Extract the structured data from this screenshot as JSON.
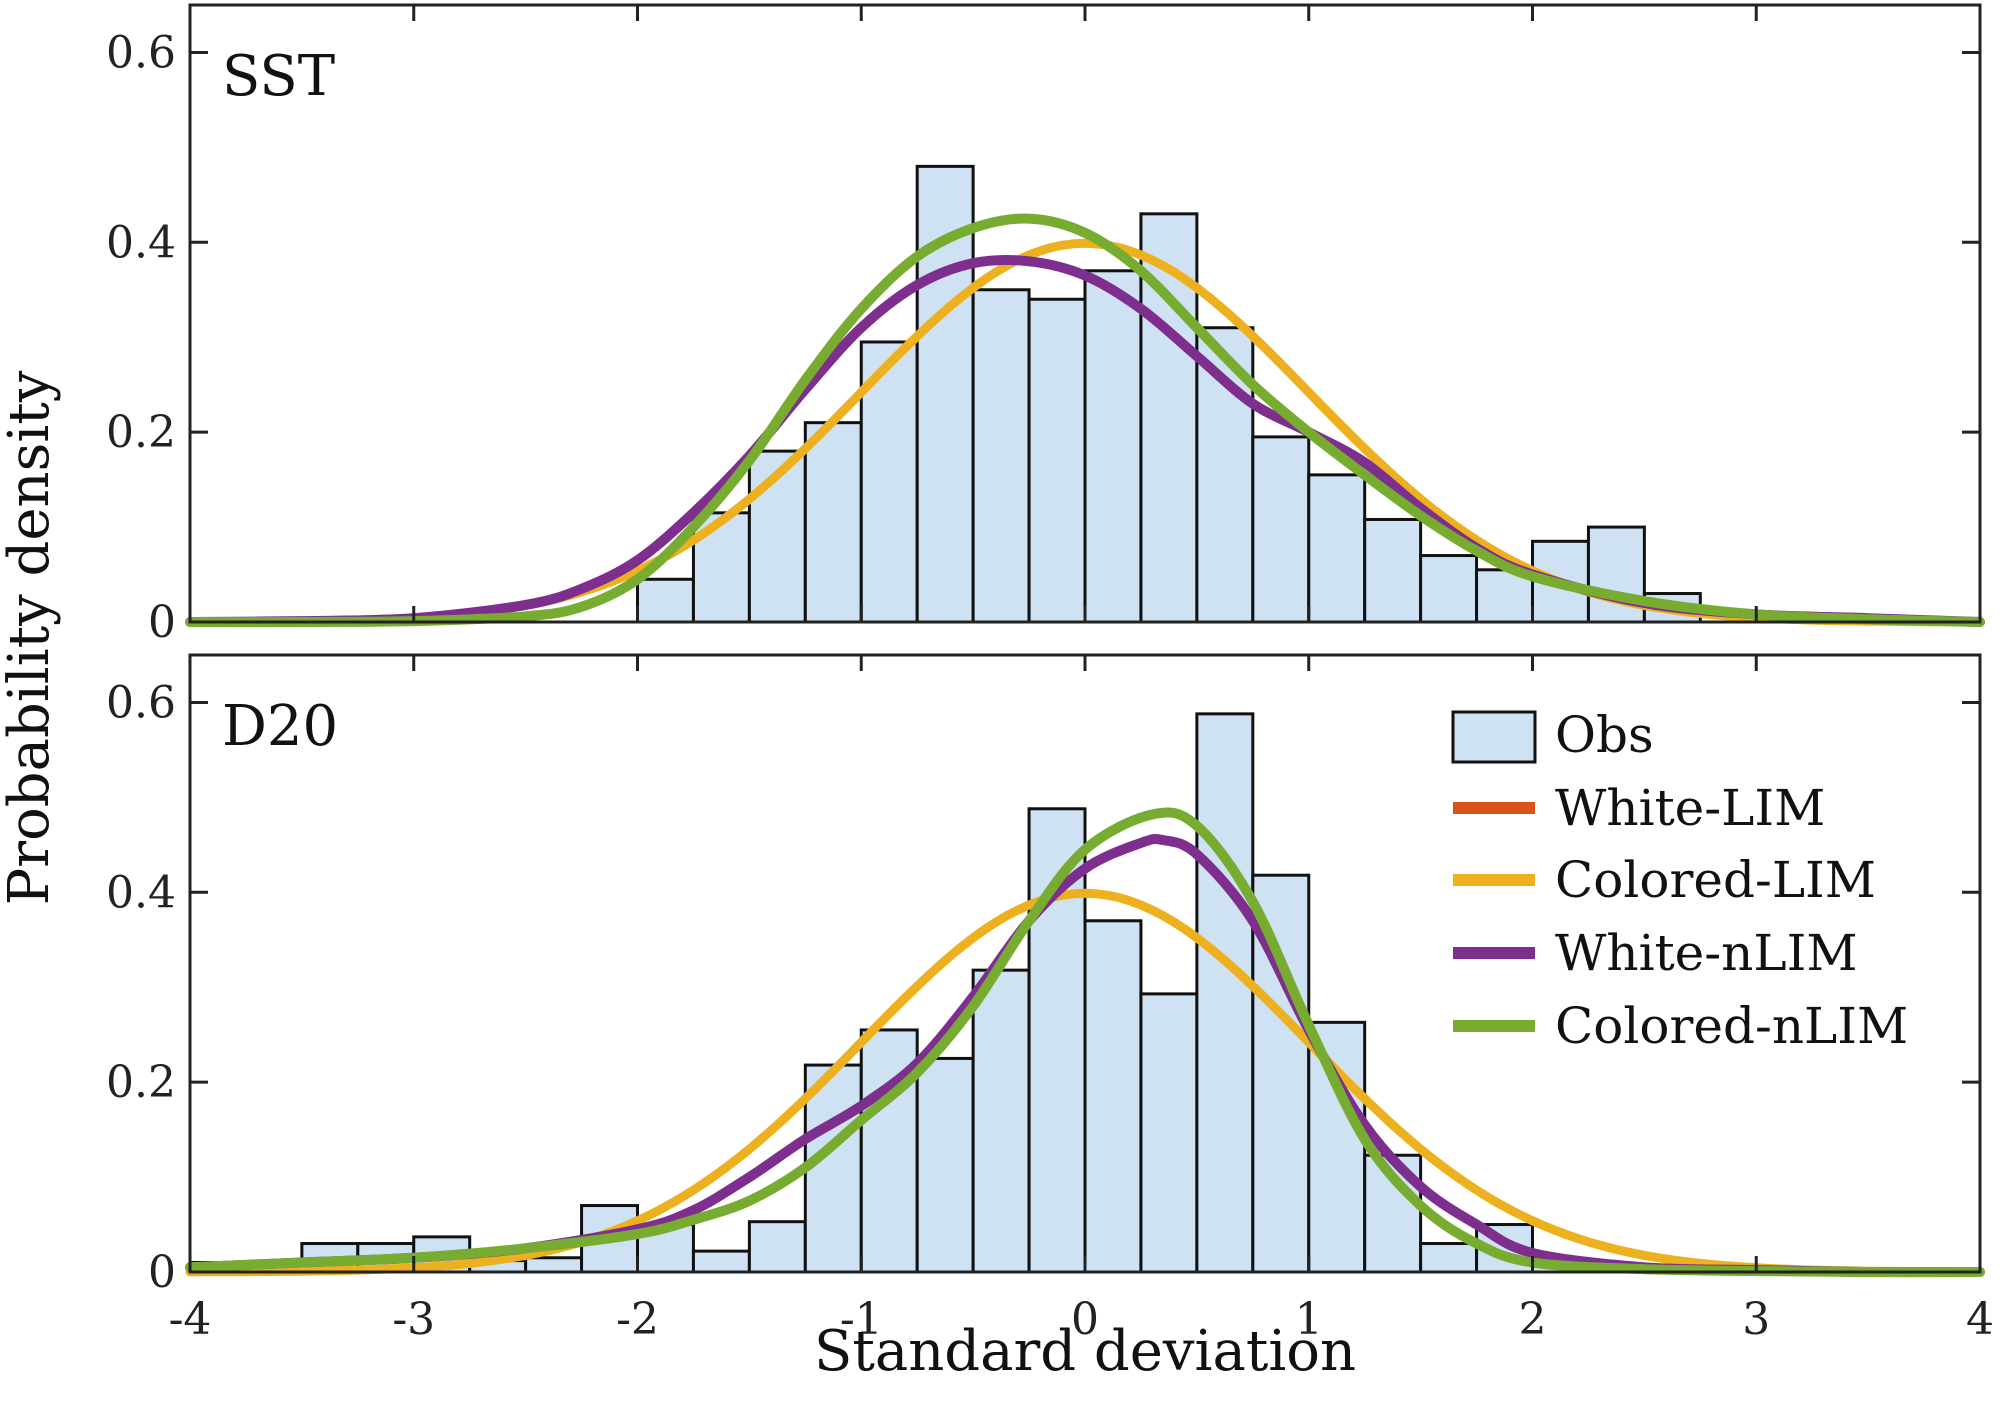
{
  "chart_data": {
    "type": "bar",
    "xlabel": "Standard deviation",
    "ylabel": "Probability density",
    "xlim": [
      -4,
      4
    ],
    "xticks": [
      -4,
      -3,
      -2,
      -1,
      0,
      1,
      2,
      3,
      4
    ],
    "xtick_labels": [
      "-4",
      "-3",
      "-2",
      "-1",
      "0",
      "1",
      "2",
      "3",
      "4"
    ],
    "bin_width": 0.25,
    "colors": {
      "obs": "#cfe2f3",
      "White-LIM": "#d95319",
      "Colored-LIM": "#edb120",
      "White-nLIM": "#7e2f8e",
      "Colored-nLIM": "#77ac30"
    },
    "legend": {
      "placement": "bottom-panel top-right",
      "entries": [
        "Obs",
        "White-LIM",
        "Colored-LIM",
        "White-nLIM",
        "Colored-nLIM"
      ]
    },
    "panels": [
      {
        "name": "sst",
        "label": "SST",
        "ylim": [
          0,
          0.65
        ],
        "yticks": [
          0,
          0.2,
          0.4,
          0.6
        ],
        "ytick_labels": [
          "0",
          "0.2",
          "0.4",
          "0.6"
        ],
        "bins": [
          {
            "left": -2.0,
            "value": 0.045
          },
          {
            "left": -1.75,
            "value": 0.115
          },
          {
            "left": -1.5,
            "value": 0.18
          },
          {
            "left": -1.25,
            "value": 0.21
          },
          {
            "left": -1.0,
            "value": 0.295
          },
          {
            "left": -0.75,
            "value": 0.48
          },
          {
            "left": -0.5,
            "value": 0.35
          },
          {
            "left": -0.25,
            "value": 0.34
          },
          {
            "left": 0.0,
            "value": 0.37
          },
          {
            "left": 0.25,
            "value": 0.43
          },
          {
            "left": 0.5,
            "value": 0.31
          },
          {
            "left": 0.75,
            "value": 0.195
          },
          {
            "left": 1.0,
            "value": 0.155
          },
          {
            "left": 1.25,
            "value": 0.108
          },
          {
            "left": 1.5,
            "value": 0.07
          },
          {
            "left": 1.75,
            "value": 0.055
          },
          {
            "left": 2.0,
            "value": 0.085
          },
          {
            "left": 2.25,
            "value": 0.1
          },
          {
            "left": 2.5,
            "value": 0.03
          }
        ],
        "series": [
          {
            "name": "White-LIM",
            "kind": "gaussian",
            "mu": 0.0,
            "sigma": 1.0,
            "scale": 1.0
          },
          {
            "name": "Colored-LIM",
            "kind": "gaussian",
            "mu": 0.0,
            "sigma": 1.0,
            "scale": 1.0
          },
          {
            "name": "White-nLIM",
            "kind": "points",
            "x": [
              -4,
              -3.5,
              -3,
              -2.5,
              -2.25,
              -2,
              -1.75,
              -1.5,
              -1.25,
              -1,
              -0.75,
              -0.5,
              -0.25,
              0,
              0.25,
              0.5,
              0.75,
              1,
              1.25,
              1.5,
              1.75,
              2,
              2.5,
              3,
              3.5,
              4
            ],
            "y": [
              0.0,
              0.001,
              0.004,
              0.018,
              0.035,
              0.065,
              0.115,
              0.175,
              0.245,
              0.31,
              0.355,
              0.378,
              0.38,
              0.365,
              0.33,
              0.28,
              0.23,
              0.2,
              0.168,
              0.12,
              0.078,
              0.05,
              0.02,
              0.008,
              0.004,
              0.0
            ]
          },
          {
            "name": "Colored-nLIM",
            "kind": "points",
            "x": [
              -4,
              -3.5,
              -3,
              -2.5,
              -2.25,
              -2,
              -1.75,
              -1.5,
              -1.25,
              -1,
              -0.75,
              -0.5,
              -0.25,
              0,
              0.25,
              0.5,
              0.75,
              1,
              1.25,
              1.5,
              1.75,
              2,
              2.5,
              3,
              3.5,
              4
            ],
            "y": [
              0.0,
              0.0,
              0.001,
              0.006,
              0.016,
              0.045,
              0.1,
              0.17,
              0.255,
              0.33,
              0.385,
              0.415,
              0.425,
              0.41,
              0.37,
              0.31,
              0.25,
              0.2,
              0.155,
              0.112,
              0.075,
              0.048,
              0.022,
              0.008,
              0.003,
              0.0
            ]
          }
        ]
      },
      {
        "name": "d20",
        "label": "D20",
        "ylim": [
          0,
          0.65
        ],
        "yticks": [
          0,
          0.2,
          0.4,
          0.6
        ],
        "ytick_labels": [
          "0",
          "0.2",
          "0.4",
          "0.6"
        ],
        "bins": [
          {
            "left": -4.0,
            "value": 0.01
          },
          {
            "left": -3.75,
            "value": 0.01
          },
          {
            "left": -3.5,
            "value": 0.03
          },
          {
            "left": -3.25,
            "value": 0.03
          },
          {
            "left": -3.0,
            "value": 0.037
          },
          {
            "left": -2.75,
            "value": 0.012
          },
          {
            "left": -2.5,
            "value": 0.015
          },
          {
            "left": -2.25,
            "value": 0.07
          },
          {
            "left": -2.0,
            "value": 0.05
          },
          {
            "left": -1.75,
            "value": 0.022
          },
          {
            "left": -1.5,
            "value": 0.053
          },
          {
            "left": -1.25,
            "value": 0.218
          },
          {
            "left": -1.0,
            "value": 0.255
          },
          {
            "left": -0.75,
            "value": 0.225
          },
          {
            "left": -0.5,
            "value": 0.318
          },
          {
            "left": -0.25,
            "value": 0.488
          },
          {
            "left": 0.0,
            "value": 0.37
          },
          {
            "left": 0.25,
            "value": 0.293
          },
          {
            "left": 0.5,
            "value": 0.588
          },
          {
            "left": 0.75,
            "value": 0.418
          },
          {
            "left": 1.0,
            "value": 0.263
          },
          {
            "left": 1.25,
            "value": 0.123
          },
          {
            "left": 1.5,
            "value": 0.03
          },
          {
            "left": 1.75,
            "value": 0.05
          },
          {
            "left": 2.0,
            "value": 0.01
          }
        ],
        "series": [
          {
            "name": "White-LIM",
            "kind": "gaussian",
            "mu": 0.0,
            "sigma": 1.0,
            "scale": 1.0
          },
          {
            "name": "Colored-LIM",
            "kind": "gaussian",
            "mu": 0.0,
            "sigma": 1.0,
            "scale": 1.0
          },
          {
            "name": "White-nLIM",
            "kind": "points",
            "x": [
              -4,
              -3.5,
              -3,
              -2.5,
              -2,
              -1.75,
              -1.5,
              -1.25,
              -1,
              -0.75,
              -0.5,
              -0.25,
              0,
              0.25,
              0.35,
              0.5,
              0.75,
              1,
              1.25,
              1.5,
              1.75,
              2,
              2.5,
              3,
              3.5,
              4
            ],
            "y": [
              0.005,
              0.01,
              0.015,
              0.025,
              0.045,
              0.065,
              0.1,
              0.14,
              0.175,
              0.22,
              0.29,
              0.37,
              0.425,
              0.452,
              0.455,
              0.44,
              0.37,
              0.255,
              0.155,
              0.09,
              0.05,
              0.02,
              0.005,
              0.002,
              0.0,
              0.0
            ]
          },
          {
            "name": "Colored-nLIM",
            "kind": "points",
            "x": [
              -4,
              -3.5,
              -3,
              -2.5,
              -2,
              -1.75,
              -1.5,
              -1.25,
              -1,
              -0.75,
              -0.5,
              -0.25,
              0,
              0.3,
              0.5,
              0.75,
              1,
              1.25,
              1.5,
              1.75,
              2,
              2.5,
              3,
              3.5,
              4
            ],
            "y": [
              0.005,
              0.01,
              0.015,
              0.025,
              0.04,
              0.055,
              0.075,
              0.11,
              0.16,
              0.21,
              0.28,
              0.37,
              0.445,
              0.482,
              0.47,
              0.39,
              0.26,
              0.14,
              0.07,
              0.03,
              0.01,
              0.003,
              0.001,
              0.0,
              0.0
            ]
          }
        ]
      }
    ]
  }
}
